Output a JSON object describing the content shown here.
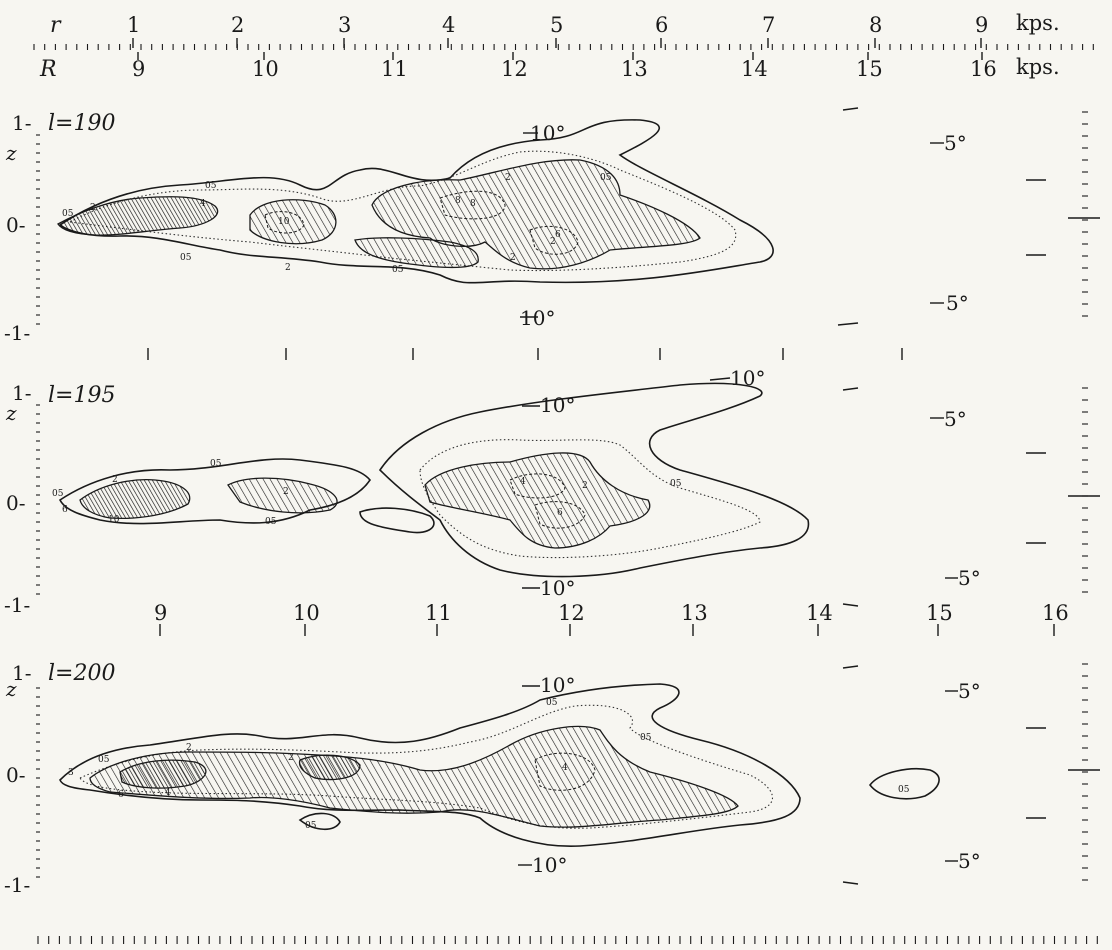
{
  "scales": {
    "r_label": "r",
    "R_label": "R",
    "unit": "kps.",
    "r_ticks": [
      "1",
      "2",
      "3",
      "4",
      "5",
      "6",
      "7",
      "8",
      "9"
    ],
    "R_ticks": [
      "9",
      "10",
      "11",
      "12",
      "13",
      "14",
      "15",
      "16"
    ],
    "mid_R_ticks": [
      "9",
      "10",
      "11",
      "12",
      "13",
      "14",
      "15",
      "16"
    ]
  },
  "panels": [
    {
      "label": "l=190",
      "z_axis": "z",
      "z_top": "1-",
      "z_zero": "0-",
      "z_bottom": "-1-",
      "lat_top": "10°",
      "lat_bottom": "10°",
      "lat_right_top": "5°",
      "lat_right_bottom": "5°",
      "contour_labels": [
        "05",
        "2",
        "4",
        "8",
        "2",
        "10",
        "05",
        "2",
        "05",
        "05",
        "2",
        "6",
        "8",
        "05",
        "2"
      ]
    },
    {
      "label": "l=195",
      "z_axis": "z",
      "z_top": "1-",
      "z_zero": "0-",
      "z_bottom": "-1-",
      "lat_top": "10°",
      "lat_top2": "10°",
      "lat_bottom": "10°",
      "lat_right_top": "5°",
      "lat_right_bottom": "5°",
      "contour_labels": [
        "05",
        "2",
        "6",
        "10",
        "05",
        "2",
        "05",
        "05",
        "2",
        "4",
        "6"
      ]
    },
    {
      "label": "l=200",
      "z_axis": "z",
      "z_top": "1-",
      "z_zero": "0-",
      "z_bottom": "-1-",
      "lat_top": "10°",
      "lat_bottom": "10°",
      "lat_right_top": "5°",
      "lat_right_bottom": "5°",
      "contour_labels": [
        "05",
        "2",
        "3",
        "6",
        "4",
        "05",
        "2",
        "4",
        "05",
        "05",
        "05"
      ]
    }
  ]
}
